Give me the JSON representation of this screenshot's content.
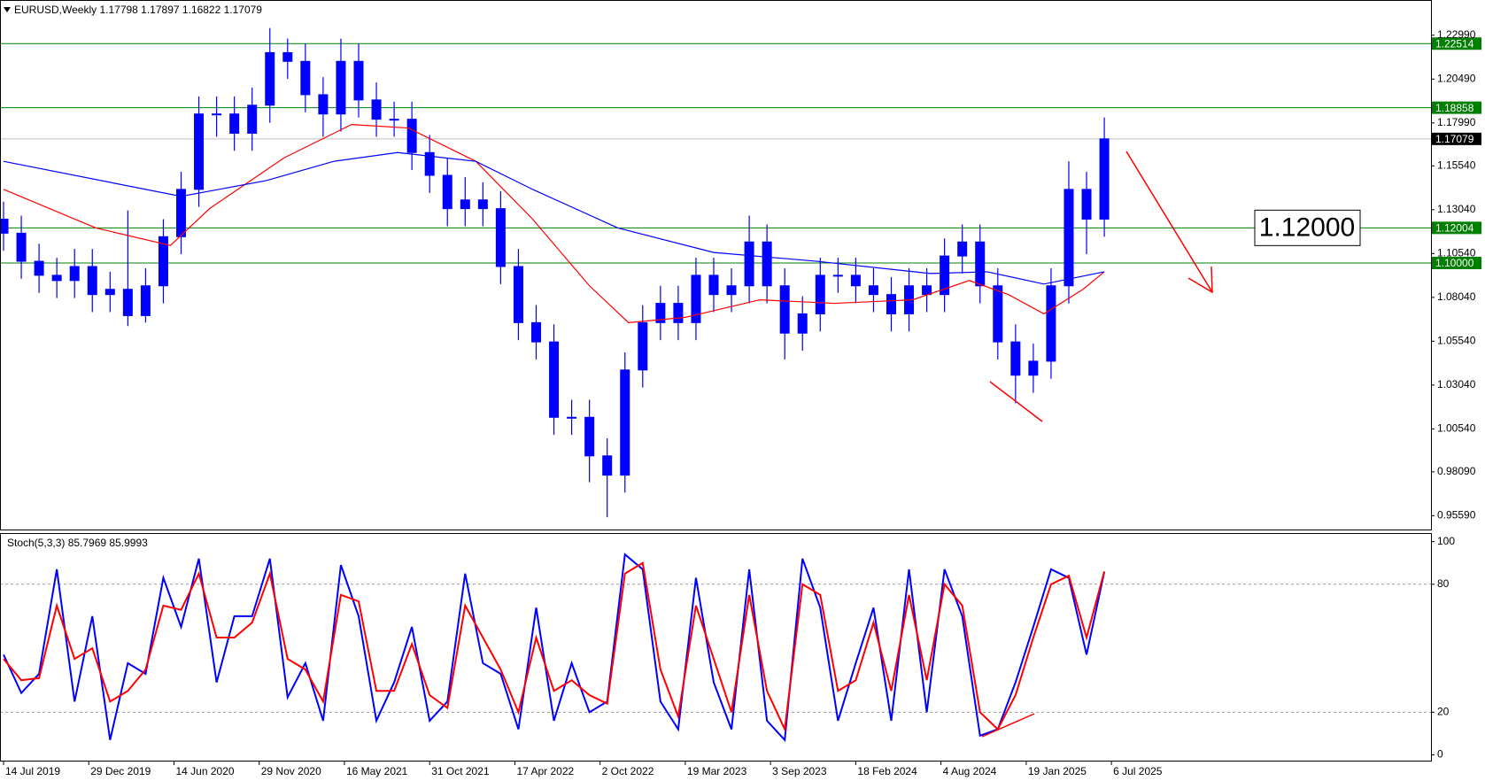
{
  "chart_data": [
    {
      "type": "candlestick",
      "title": "EURUSD,Weekly  1.17798 1.17897 1.16822 1.17079",
      "color": "#0000ff",
      "xlim": [
        -1,
        402
      ],
      "ylim": [
        0.948,
        1.25
      ],
      "yticks": [
        {
          "value": 1.2299,
          "label": "1.22990"
        },
        {
          "value": 1.2049,
          "label": "1.20490"
        },
        {
          "value": 1.1799,
          "label": "1.17990"
        },
        {
          "value": 1.1554,
          "label": "1.15540"
        },
        {
          "value": 1.1304,
          "label": "1.13040"
        },
        {
          "value": 1.1054,
          "label": "1.10540"
        },
        {
          "value": 1.0804,
          "label": "1.08040"
        },
        {
          "value": 1.0554,
          "label": "1.05540"
        },
        {
          "value": 1.0304,
          "label": "1.03040"
        },
        {
          "value": 1.0054,
          "label": "1.00540"
        },
        {
          "value": 0.9809,
          "label": "0.98090"
        },
        {
          "value": 0.9559,
          "label": "0.95590"
        }
      ],
      "x": [
        0,
        5,
        10,
        15,
        20,
        25,
        30,
        35,
        40,
        45,
        50,
        55,
        60,
        65,
        70,
        75,
        80,
        85,
        90,
        95,
        100,
        105,
        110,
        115,
        120,
        125,
        130,
        135,
        140,
        145,
        150,
        155,
        160,
        165,
        170,
        175,
        180,
        185,
        190,
        195,
        200,
        205,
        210,
        215,
        220,
        225,
        230,
        235,
        240,
        245,
        250,
        255,
        260,
        265,
        270,
        275,
        280,
        285,
        290,
        295,
        300,
        305,
        310
      ],
      "open": [
        1.125,
        1.117,
        1.101,
        1.093,
        1.09,
        1.098,
        1.082,
        1.085,
        1.07,
        1.087,
        1.115,
        1.142,
        1.185,
        1.185,
        1.174,
        1.19,
        1.22,
        1.215,
        1.196,
        1.185,
        1.215,
        1.193,
        1.182,
        1.182,
        1.163,
        1.15,
        1.131,
        1.136,
        1.131,
        1.098,
        1.066,
        1.055,
        1.012,
        1.012,
        0.99,
        0.979,
        1.039,
        1.066,
        1.077,
        1.066,
        1.093,
        1.082,
        1.087,
        1.112,
        1.087,
        1.06,
        1.071,
        1.093,
        1.093,
        1.087,
        1.082,
        1.071,
        1.087,
        1.082,
        1.104,
        1.112,
        1.087,
        1.055,
        1.036,
        1.044,
        1.087,
        1.142,
        1.125
      ],
      "high": [
        1.135,
        1.127,
        1.111,
        1.103,
        1.108,
        1.108,
        1.095,
        1.13,
        1.097,
        1.125,
        1.152,
        1.195,
        1.195,
        1.195,
        1.2,
        1.234,
        1.228,
        1.225,
        1.206,
        1.228,
        1.225,
        1.203,
        1.192,
        1.192,
        1.173,
        1.16,
        1.149,
        1.146,
        1.141,
        1.108,
        1.076,
        1.065,
        1.022,
        1.022,
        1.0,
        1.049,
        1.076,
        1.087,
        1.087,
        1.103,
        1.103,
        1.097,
        1.127,
        1.122,
        1.097,
        1.081,
        1.103,
        1.103,
        1.103,
        1.097,
        1.092,
        1.097,
        1.097,
        1.114,
        1.122,
        1.122,
        1.097,
        1.065,
        1.054,
        1.097,
        1.158,
        1.152,
        1.183
      ],
      "low": [
        1.107,
        1.091,
        1.083,
        1.08,
        1.08,
        1.072,
        1.072,
        1.064,
        1.066,
        1.077,
        1.105,
        1.132,
        1.172,
        1.164,
        1.164,
        1.18,
        1.205,
        1.186,
        1.172,
        1.175,
        1.183,
        1.172,
        1.172,
        1.153,
        1.14,
        1.121,
        1.121,
        1.121,
        1.088,
        1.056,
        1.045,
        1.002,
        1.002,
        0.975,
        0.955,
        0.969,
        1.029,
        1.056,
        1.056,
        1.056,
        1.072,
        1.072,
        1.077,
        1.077,
        1.045,
        1.05,
        1.061,
        1.083,
        1.077,
        1.072,
        1.061,
        1.061,
        1.072,
        1.072,
        1.094,
        1.077,
        1.045,
        1.02,
        1.026,
        1.034,
        1.077,
        1.105,
        1.115
      ],
      "close": [
        1.117,
        1.101,
        1.093,
        1.09,
        1.098,
        1.082,
        1.085,
        1.07,
        1.087,
        1.115,
        1.142,
        1.185,
        1.185,
        1.174,
        1.19,
        1.22,
        1.215,
        1.196,
        1.185,
        1.215,
        1.193,
        1.182,
        1.182,
        1.163,
        1.15,
        1.131,
        1.136,
        1.131,
        1.098,
        1.066,
        1.055,
        1.012,
        1.012,
        0.99,
        0.979,
        1.039,
        1.066,
        1.077,
        1.066,
        1.093,
        1.082,
        1.087,
        1.112,
        1.087,
        1.06,
        1.071,
        1.093,
        1.093,
        1.087,
        1.082,
        1.071,
        1.087,
        1.082,
        1.104,
        1.112,
        1.087,
        1.055,
        1.036,
        1.044,
        1.087,
        1.142,
        1.125,
        1.17079
      ],
      "overlays": [
        {
          "color": "#ff0000",
          "x": [
            0,
            26,
            47,
            58,
            79,
            98,
            114,
            133,
            149,
            165,
            176,
            192,
            213,
            234,
            256,
            272,
            283,
            293,
            304,
            310
          ],
          "values": [
            1.142,
            1.12,
            1.11,
            1.131,
            1.16,
            1.179,
            1.177,
            1.158,
            1.125,
            1.087,
            1.066,
            1.069,
            1.079,
            1.077,
            1.079,
            1.09,
            1.082,
            1.071,
            1.085,
            1.095
          ]
        },
        {
          "color": "#0000ff",
          "x": [
            0,
            50,
            74,
            93,
            111,
            133,
            149,
            173,
            200,
            229,
            261,
            277,
            293,
            310
          ],
          "values": [
            1.158,
            1.138,
            1.147,
            1.158,
            1.163,
            1.158,
            1.142,
            1.12,
            1.106,
            1.101,
            1.094,
            1.095,
            1.088,
            1.095
          ]
        }
      ],
      "levels": [
        {
          "value": 1.22514,
          "label": "1.22514",
          "color": "#008000",
          "box": "#008000"
        },
        {
          "value": 1.18858,
          "label": "1.18858",
          "color": "#008000",
          "box": "#008000"
        },
        {
          "value": 1.17079,
          "label": "1.17079",
          "color": "#c0c0c0",
          "box": "#000000"
        },
        {
          "value": 1.12004,
          "label": "1.12004",
          "color": "#008000",
          "box": "#008000"
        },
        {
          "value": 1.1,
          "label": "1.10000",
          "color": "#008000",
          "box": "#008000"
        }
      ],
      "annotation": "1.12000"
    },
    {
      "type": "line",
      "title": "Stoch(5,3,3) 85.7969 85.9993",
      "xlim": [
        -1,
        402
      ],
      "ylim": [
        -2.7,
        104
      ],
      "yticks": [
        100,
        80,
        20,
        0
      ],
      "levels": [
        80,
        20
      ],
      "xticks": [
        {
          "value": 0,
          "label": "14 Jul 2019"
        },
        {
          "value": 24,
          "label": "29 Dec 2019"
        },
        {
          "value": 48,
          "label": "14 Jun 2020"
        },
        {
          "value": 72,
          "label": "29 Nov 2020"
        },
        {
          "value": 96,
          "label": "16 May 2021"
        },
        {
          "value": 120,
          "label": "31 Oct 2021"
        },
        {
          "value": 144,
          "label": "17 Apr 2022"
        },
        {
          "value": 168,
          "label": "2 Oct 2022"
        },
        {
          "value": 192,
          "label": "19 Mar 2023"
        },
        {
          "value": 216,
          "label": "3 Sep 2023"
        },
        {
          "value": 240,
          "label": "18 Feb 2024"
        },
        {
          "value": 264,
          "label": "4 Aug 2024"
        },
        {
          "value": 288,
          "label": "19 Jan 2025"
        },
        {
          "value": 312,
          "label": "6 Jul 2025"
        }
      ],
      "x": [
        0,
        5,
        10,
        15,
        20,
        25,
        30,
        35,
        40,
        45,
        50,
        55,
        60,
        65,
        70,
        75,
        80,
        85,
        90,
        95,
        100,
        105,
        110,
        115,
        120,
        125,
        130,
        135,
        140,
        145,
        150,
        155,
        160,
        165,
        170,
        175,
        180,
        185,
        190,
        195,
        200,
        205,
        210,
        215,
        220,
        225,
        230,
        235,
        240,
        245,
        250,
        255,
        260,
        265,
        270,
        275,
        280,
        285,
        290,
        295,
        300,
        305,
        310
      ],
      "series": [
        {
          "color": "#0000ff",
          "values": [
            47,
            29,
            38,
            87,
            25,
            65,
            7,
            43,
            38,
            83,
            60,
            92,
            34,
            65,
            65,
            92,
            27,
            43,
            16,
            89,
            65,
            16,
            34,
            60,
            16,
            25,
            85,
            43,
            38,
            12,
            69,
            16,
            43,
            20,
            25,
            94,
            87,
            25,
            12,
            83,
            34,
            12,
            87,
            16,
            7,
            92,
            69,
            16,
            43,
            69,
            16,
            87,
            20,
            87,
            65,
            9,
            12,
            34,
            60,
            87,
            83,
            47,
            85.7969
          ]
        },
        {
          "color": "#ff0000",
          "values": [
            45,
            35,
            36,
            70,
            45,
            50,
            25,
            30,
            40,
            70,
            68,
            85,
            55,
            55,
            62,
            85,
            45,
            40,
            25,
            75,
            72,
            30,
            30,
            52,
            28,
            22,
            70,
            55,
            40,
            20,
            55,
            30,
            35,
            28,
            24,
            85,
            90,
            40,
            18,
            70,
            45,
            20,
            75,
            30,
            12,
            80,
            75,
            30,
            35,
            62,
            30,
            75,
            35,
            80,
            70,
            20,
            12,
            28,
            55,
            80,
            84,
            55,
            85.9993
          ]
        }
      ]
    }
  ]
}
